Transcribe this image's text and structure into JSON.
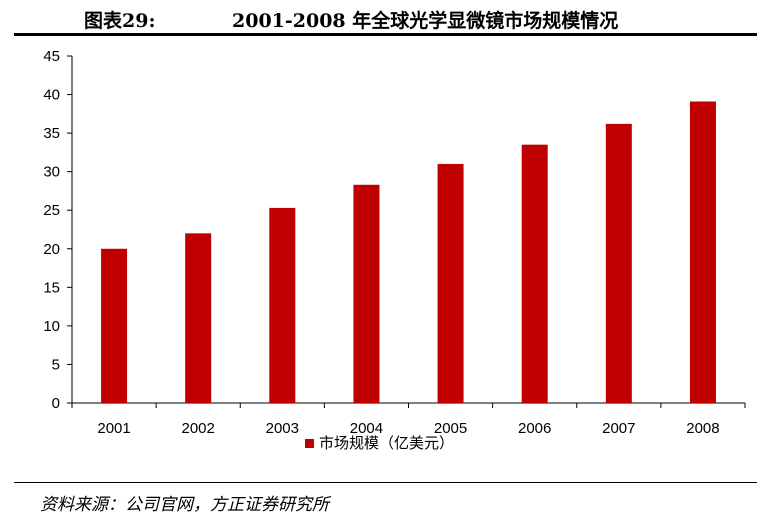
{
  "header": {
    "label": "图表29:",
    "title": "2001-2008 年全球光学显微镜市场规模情况"
  },
  "footer": {
    "source": "资料来源：公司官网，方正证券研究所"
  },
  "colors": {
    "bar": "#c00000",
    "axis": "#000000"
  },
  "chart_data": {
    "type": "bar",
    "title": "2001-2008 年全球光学显微镜市场规模情况",
    "categories": [
      "2001",
      "2002",
      "2003",
      "2004",
      "2005",
      "2006",
      "2007",
      "2008"
    ],
    "series": [
      {
        "name": "市场规模（亿美元）",
        "values": [
          20,
          22,
          25.3,
          28.3,
          31,
          33.5,
          36.2,
          39.1
        ]
      }
    ],
    "ylim": [
      0,
      45
    ],
    "yticks": [
      0,
      5,
      10,
      15,
      20,
      25,
      30,
      35,
      40,
      45
    ],
    "grid": false,
    "legend_position": "bottom"
  }
}
